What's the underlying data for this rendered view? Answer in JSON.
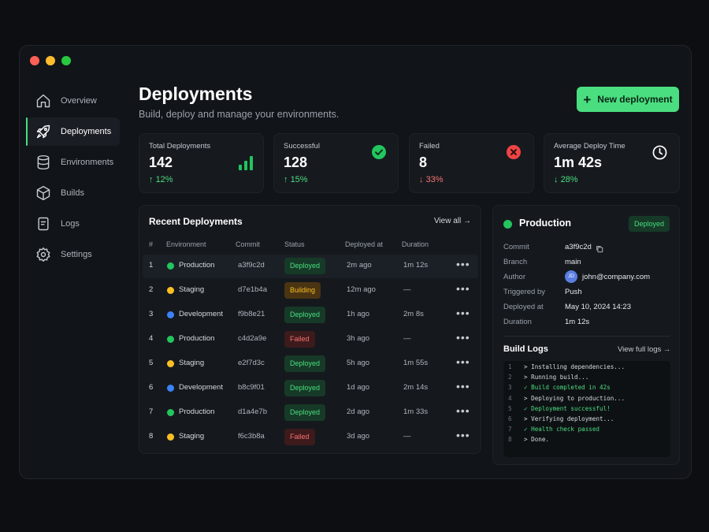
{
  "window": {
    "dots": [
      "close",
      "minimize",
      "maximize"
    ]
  },
  "sidebar": {
    "items": [
      {
        "label": "Overview",
        "icon": "home-icon",
        "active": false
      },
      {
        "label": "Deployments",
        "icon": "rocket-icon",
        "active": true
      },
      {
        "label": "Environments",
        "icon": "database-icon",
        "active": false
      },
      {
        "label": "Builds",
        "icon": "cube-icon",
        "active": false
      },
      {
        "label": "Logs",
        "icon": "document-icon",
        "active": false
      },
      {
        "label": "Settings",
        "icon": "gear-icon",
        "active": false
      }
    ]
  },
  "header": {
    "title": "Deployments",
    "subtitle": "Build, deploy and manage your environments.",
    "new_button": "New deployment",
    "new_button_icon": "+"
  },
  "stats": [
    {
      "label": "Total Deployments",
      "value": "142",
      "delta": "12%",
      "direction": "up",
      "icon": "bar-chart-icon"
    },
    {
      "label": "Successful",
      "value": "128",
      "delta": "15%",
      "direction": "up",
      "icon": "check-circle-icon"
    },
    {
      "label": "Failed",
      "value": "8",
      "delta": "33%",
      "direction": "down",
      "icon": "x-circle-icon"
    },
    {
      "label": "Average Deploy Time",
      "value": "1m 42s",
      "delta": "28%",
      "direction": "down",
      "icon": "clock-icon"
    }
  ],
  "recent": {
    "title": "Recent Deployments",
    "view_all": "View all",
    "columns": [
      "#",
      "Environment",
      "Commit",
      "Status",
      "Deployed at",
      "Duration"
    ],
    "rows": [
      {
        "n": "1",
        "env": "Production",
        "env_color": "#22c55e",
        "commit": "a3f9c2d",
        "status": "Deployed",
        "deployed": "2m ago",
        "duration": "1m 12s"
      },
      {
        "n": "2",
        "env": "Staging",
        "env_color": "#fbbf24",
        "commit": "d7e1b4a",
        "status": "Building",
        "deployed": "12m ago",
        "duration": "—"
      },
      {
        "n": "3",
        "env": "Development",
        "env_color": "#3b82f6",
        "commit": "f9b8e21",
        "status": "Deployed",
        "deployed": "1h ago",
        "duration": "2m 8s"
      },
      {
        "n": "4",
        "env": "Production",
        "env_color": "#22c55e",
        "commit": "c4d2a9e",
        "status": "Failed",
        "deployed": "3h ago",
        "duration": "—"
      },
      {
        "n": "5",
        "env": "Staging",
        "env_color": "#fbbf24",
        "commit": "e2f7d3c",
        "status": "Deployed",
        "deployed": "5h ago",
        "duration": "1m 55s"
      },
      {
        "n": "6",
        "env": "Development",
        "env_color": "#3b82f6",
        "commit": "b8c9f01",
        "status": "Deployed",
        "deployed": "1d ago",
        "duration": "2m 14s"
      },
      {
        "n": "7",
        "env": "Production",
        "env_color": "#22c55e",
        "commit": "d1a4e7b",
        "status": "Deployed",
        "deployed": "2d ago",
        "duration": "1m 33s"
      },
      {
        "n": "8",
        "env": "Staging",
        "env_color": "#fbbf24",
        "commit": "f6c3b8a",
        "status": "Failed",
        "deployed": "3d ago",
        "duration": "—"
      }
    ],
    "more_icon": "•••"
  },
  "detail": {
    "title": "Production",
    "badge": "Deployed",
    "fields": [
      {
        "label": "Commit",
        "value": "a3f9c2d"
      },
      {
        "label": "Branch",
        "value": "main"
      },
      {
        "label": "Author",
        "value": "john@company.com",
        "avatar": "JD"
      },
      {
        "label": "Triggered by",
        "value": "Push"
      },
      {
        "label": "Deployed at",
        "value": "May 10, 2024 14:23"
      },
      {
        "label": "Duration",
        "value": "1m 12s"
      }
    ],
    "logs_title": "Build Logs",
    "logs_link": "View full logs",
    "logs": [
      {
        "n": "1",
        "text": "> Installing dependencies...",
        "ok": false
      },
      {
        "n": "2",
        "text": "> Running build...",
        "ok": false
      },
      {
        "n": "3",
        "text": "✓ Build completed in 42s",
        "ok": true
      },
      {
        "n": "4",
        "text": "> Deploying to production...",
        "ok": false
      },
      {
        "n": "5",
        "text": "✓ Deployment successful!",
        "ok": true
      },
      {
        "n": "6",
        "text": "> Verifying deployment...",
        "ok": false
      },
      {
        "n": "7",
        "text": "✓ Health check passed",
        "ok": true
      },
      {
        "n": "8",
        "text": "> Done.",
        "ok": false
      }
    ]
  },
  "colors": {
    "accent": "#4ade80",
    "failed": "#f87171",
    "building": "#fbbf24",
    "background": "#0c0e11"
  }
}
